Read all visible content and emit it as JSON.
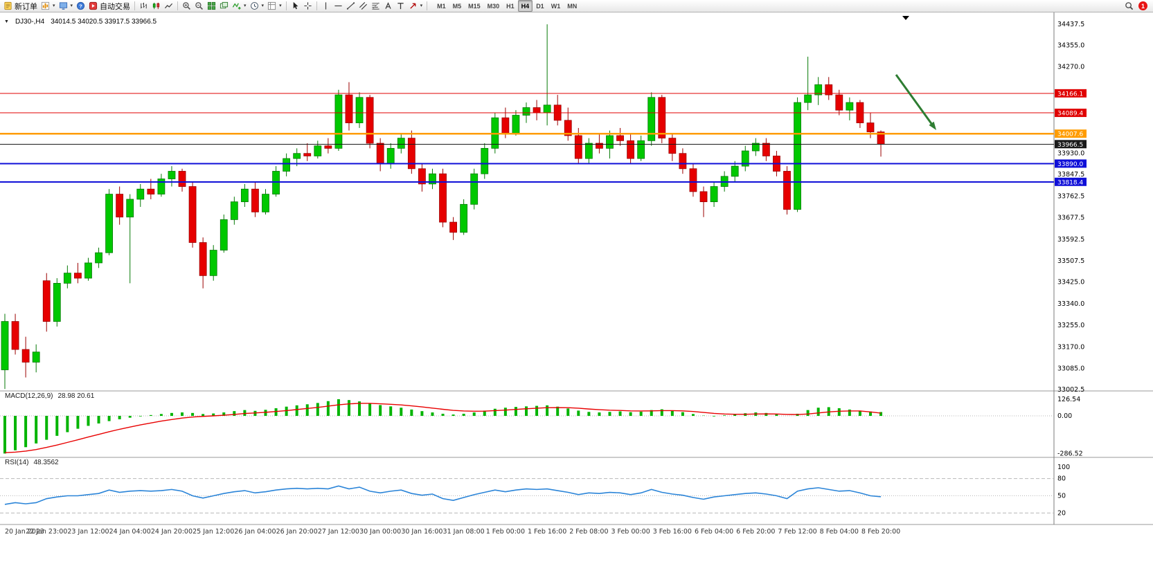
{
  "toolbar": {
    "new_order": "新订单",
    "auto_trading": "自动交易",
    "timeframes": [
      "M1",
      "M5",
      "M15",
      "M30",
      "H1",
      "H4",
      "D1",
      "W1",
      "MN"
    ],
    "active_timeframe": "H4",
    "notification_count": "1"
  },
  "chart": {
    "title": "DJ30-,H4",
    "ohlc": "34014.5 34020.5 33917.5 33966.5"
  },
  "chart_data": {
    "type": "candlestick",
    "symbol": "DJ30-",
    "timeframe": "H4",
    "up_color": "#00c800",
    "down_color": "#e60000",
    "arrow_color": "#2e7d32",
    "bars_per_label": 4,
    "x_labels": [
      "20 Jan 2023",
      "22 Jan 23:00",
      "23 Jan 12:00",
      "24 Jan 04:00",
      "24 Jan 20:00",
      "25 Jan 12:00",
      "26 Jan 04:00",
      "26 Jan 20:00",
      "27 Jan 12:00",
      "30 Jan 00:00",
      "30 Jan 16:00",
      "31 Jan 08:00",
      "1 Feb 00:00",
      "1 Feb 16:00",
      "2 Feb 08:00",
      "3 Feb 00:00",
      "3 Feb 16:00",
      "6 Feb 04:00",
      "6 Feb 20:00",
      "7 Feb 12:00",
      "8 Feb 04:00",
      "8 Feb 20:00"
    ],
    "y_axis_labels": [
      "34437.5",
      "34355.0",
      "34270.0",
      "33930.0",
      "33847.5",
      "33762.5",
      "33677.5",
      "33592.5",
      "33507.5",
      "33425.0",
      "33340.0",
      "33255.0",
      "33170.0",
      "33085.0",
      "33002.5"
    ],
    "price_lines": [
      {
        "label": "34166.1",
        "price": 34166.1,
        "color": "#e00000",
        "width": 1
      },
      {
        "label": "34089.4",
        "price": 34089.4,
        "color": "#e00000",
        "width": 1
      },
      {
        "label": "34007.6",
        "price": 34007.6,
        "color": "#ff9c00",
        "width": 2.5
      },
      {
        "label": "33966.5",
        "price": 33966.5,
        "color": "#1a1a1a",
        "width": 1
      },
      {
        "label": "33890.0",
        "price": 33890.0,
        "color": "#0f0fd8",
        "width": 2
      },
      {
        "label": "33818.4",
        "price": 33818.4,
        "color": "#0f0fd8",
        "width": 2
      }
    ],
    "candles": [
      [
        33080,
        33300,
        33005,
        33270
      ],
      [
        33270,
        33300,
        33140,
        33160
      ],
      [
        33160,
        33210,
        33050,
        33110
      ],
      [
        33110,
        33180,
        33070,
        33150
      ],
      [
        33430,
        33460,
        33230,
        33270
      ],
      [
        33270,
        33440,
        33250,
        33420
      ],
      [
        33420,
        33490,
        33400,
        33460
      ],
      [
        33460,
        33500,
        33420,
        33440
      ],
      [
        33440,
        33520,
        33430,
        33500
      ],
      [
        33500,
        33560,
        33480,
        33540
      ],
      [
        33540,
        33790,
        33530,
        33770
      ],
      [
        33770,
        33800,
        33650,
        33680
      ],
      [
        33680,
        33770,
        33420,
        33750
      ],
      [
        33750,
        33810,
        33720,
        33790
      ],
      [
        33790,
        33830,
        33750,
        33770
      ],
      [
        33770,
        33850,
        33760,
        33830
      ],
      [
        33830,
        33880,
        33800,
        33860
      ],
      [
        33860,
        33870,
        33780,
        33800
      ],
      [
        33800,
        33820,
        33560,
        33580
      ],
      [
        33580,
        33600,
        33400,
        33450
      ],
      [
        33450,
        33570,
        33430,
        33550
      ],
      [
        33550,
        33690,
        33540,
        33670
      ],
      [
        33670,
        33760,
        33650,
        33740
      ],
      [
        33740,
        33810,
        33720,
        33790
      ],
      [
        33790,
        33820,
        33680,
        33700
      ],
      [
        33700,
        33790,
        33690,
        33770
      ],
      [
        33770,
        33880,
        33760,
        33860
      ],
      [
        33860,
        33930,
        33840,
        33910
      ],
      [
        33910,
        33950,
        33880,
        33930
      ],
      [
        33930,
        33970,
        33900,
        33920
      ],
      [
        33920,
        33980,
        33910,
        33960
      ],
      [
        33960,
        33990,
        33930,
        33950
      ],
      [
        33950,
        34180,
        33940,
        34160
      ],
      [
        34160,
        34210,
        34020,
        34050
      ],
      [
        34050,
        34170,
        34030,
        34150
      ],
      [
        34150,
        34160,
        33950,
        33970
      ],
      [
        33970,
        33990,
        33860,
        33890
      ],
      [
        33890,
        33970,
        33870,
        33950
      ],
      [
        33950,
        34010,
        33930,
        33990
      ],
      [
        33990,
        34020,
        33850,
        33870
      ],
      [
        33870,
        33890,
        33780,
        33810
      ],
      [
        33810,
        33870,
        33790,
        33850
      ],
      [
        33850,
        33870,
        33640,
        33660
      ],
      [
        33660,
        33680,
        33590,
        33620
      ],
      [
        33620,
        33750,
        33610,
        33730
      ],
      [
        33730,
        33870,
        33710,
        33850
      ],
      [
        33850,
        33970,
        33830,
        33950
      ],
      [
        33950,
        34090,
        33930,
        34070
      ],
      [
        34070,
        34110,
        33990,
        34010
      ],
      [
        34010,
        34100,
        34000,
        34080
      ],
      [
        34080,
        34130,
        34050,
        34110
      ],
      [
        34110,
        34140,
        34060,
        34090
      ],
      [
        34090,
        34437,
        34040,
        34120
      ],
      [
        34120,
        34160,
        34040,
        34060
      ],
      [
        34060,
        34110,
        33980,
        34000
      ],
      [
        34000,
        34030,
        33890,
        33910
      ],
      [
        33910,
        33990,
        33890,
        33970
      ],
      [
        33970,
        34010,
        33930,
        33950
      ],
      [
        33950,
        34020,
        33910,
        34000
      ],
      [
        34000,
        34030,
        33960,
        33980
      ],
      [
        33980,
        34010,
        33890,
        33910
      ],
      [
        33910,
        34000,
        33900,
        33980
      ],
      [
        33980,
        34170,
        33960,
        34150
      ],
      [
        34150,
        34160,
        33970,
        33990
      ],
      [
        33990,
        34010,
        33900,
        33930
      ],
      [
        33930,
        33950,
        33850,
        33870
      ],
      [
        33870,
        33890,
        33760,
        33780
      ],
      [
        33780,
        33800,
        33680,
        33740
      ],
      [
        33740,
        33820,
        33720,
        33800
      ],
      [
        33800,
        33860,
        33780,
        33840
      ],
      [
        33840,
        33900,
        33820,
        33880
      ],
      [
        33880,
        33960,
        33860,
        33940
      ],
      [
        33940,
        33990,
        33920,
        33970
      ],
      [
        33970,
        33990,
        33900,
        33920
      ],
      [
        33920,
        33940,
        33840,
        33860
      ],
      [
        33860,
        33880,
        33690,
        33710
      ],
      [
        33710,
        34150,
        33700,
        34130
      ],
      [
        34130,
        34310,
        34100,
        34160
      ],
      [
        34160,
        34230,
        34120,
        34200
      ],
      [
        34200,
        34230,
        34140,
        34160
      ],
      [
        34160,
        34180,
        34080,
        34100
      ],
      [
        34100,
        34150,
        34060,
        34130
      ],
      [
        34130,
        34140,
        34030,
        34050
      ],
      [
        34050,
        34090,
        33990,
        34014.5
      ],
      [
        34014.5,
        34020.5,
        33917.5,
        33966.5
      ]
    ]
  },
  "macd": {
    "label": "MACD(12,26,9)",
    "values": "28.98 20.61",
    "hist_color": "#00b400",
    "signal_color": "#e80000",
    "axis": [
      "126.54",
      "0.00",
      "-286.52"
    ],
    "hist": [
      -286.52,
      -262,
      -238,
      -210,
      -182,
      -152,
      -124,
      -98,
      -76,
      -58,
      -40,
      -26,
      -14,
      -4,
      6,
      14,
      22,
      26,
      22,
      14,
      18,
      26,
      36,
      44,
      38,
      46,
      58,
      70,
      80,
      88,
      98,
      112,
      126.54,
      120,
      110,
      96,
      82,
      72,
      62,
      48,
      36,
      26,
      16,
      10,
      16,
      26,
      40,
      54,
      62,
      68,
      72,
      76,
      80,
      70,
      56,
      40,
      30,
      26,
      30,
      34,
      28,
      32,
      44,
      50,
      40,
      28,
      14,
      2,
      -4,
      4,
      12,
      20,
      26,
      22,
      12,
      0,
      16,
      44,
      62,
      66,
      58,
      48,
      40,
      33,
      28.98
    ],
    "signal": [
      -280,
      -276,
      -268,
      -256,
      -240,
      -222,
      -202,
      -182,
      -161,
      -141,
      -121,
      -102,
      -85,
      -69,
      -54,
      -40,
      -28,
      -17,
      -9,
      -4,
      0,
      5,
      11,
      18,
      22,
      27,
      33,
      40,
      48,
      56,
      64,
      74,
      84,
      91,
      95,
      95,
      92,
      88,
      83,
      76,
      68,
      59,
      50,
      42,
      37,
      35,
      36,
      40,
      44,
      49,
      54,
      58,
      62,
      63,
      62,
      58,
      52,
      47,
      43,
      41,
      38,
      37,
      38,
      40,
      40,
      38,
      33,
      26,
      19,
      14,
      12,
      12,
      14,
      15,
      14,
      11,
      10,
      14,
      22,
      30,
      35,
      37,
      37,
      30,
      20.61
    ]
  },
  "rsi": {
    "label": "RSI(14)",
    "value": "48.3562",
    "color": "#2a84d8",
    "axis": [
      "100",
      "80",
      "50",
      "20"
    ],
    "levels": [
      80,
      50,
      20
    ],
    "line": [
      35,
      38,
      36,
      38,
      45,
      48,
      50,
      50,
      52,
      54,
      60,
      56,
      58,
      59,
      58,
      59,
      61,
      58,
      50,
      46,
      50,
      54,
      57,
      59,
      55,
      57,
      60,
      62,
      63,
      62,
      63,
      62,
      67,
      62,
      65,
      58,
      55,
      58,
      60,
      54,
      51,
      53,
      45,
      42,
      47,
      52,
      56,
      60,
      57,
      60,
      62,
      61,
      62,
      59,
      56,
      52,
      55,
      54,
      56,
      55,
      52,
      55,
      61,
      56,
      53,
      51,
      47,
      44,
      48,
      50,
      52,
      54,
      55,
      53,
      50,
      45,
      58,
      62,
      64,
      61,
      58,
      59,
      55,
      50,
      48.36
    ]
  }
}
